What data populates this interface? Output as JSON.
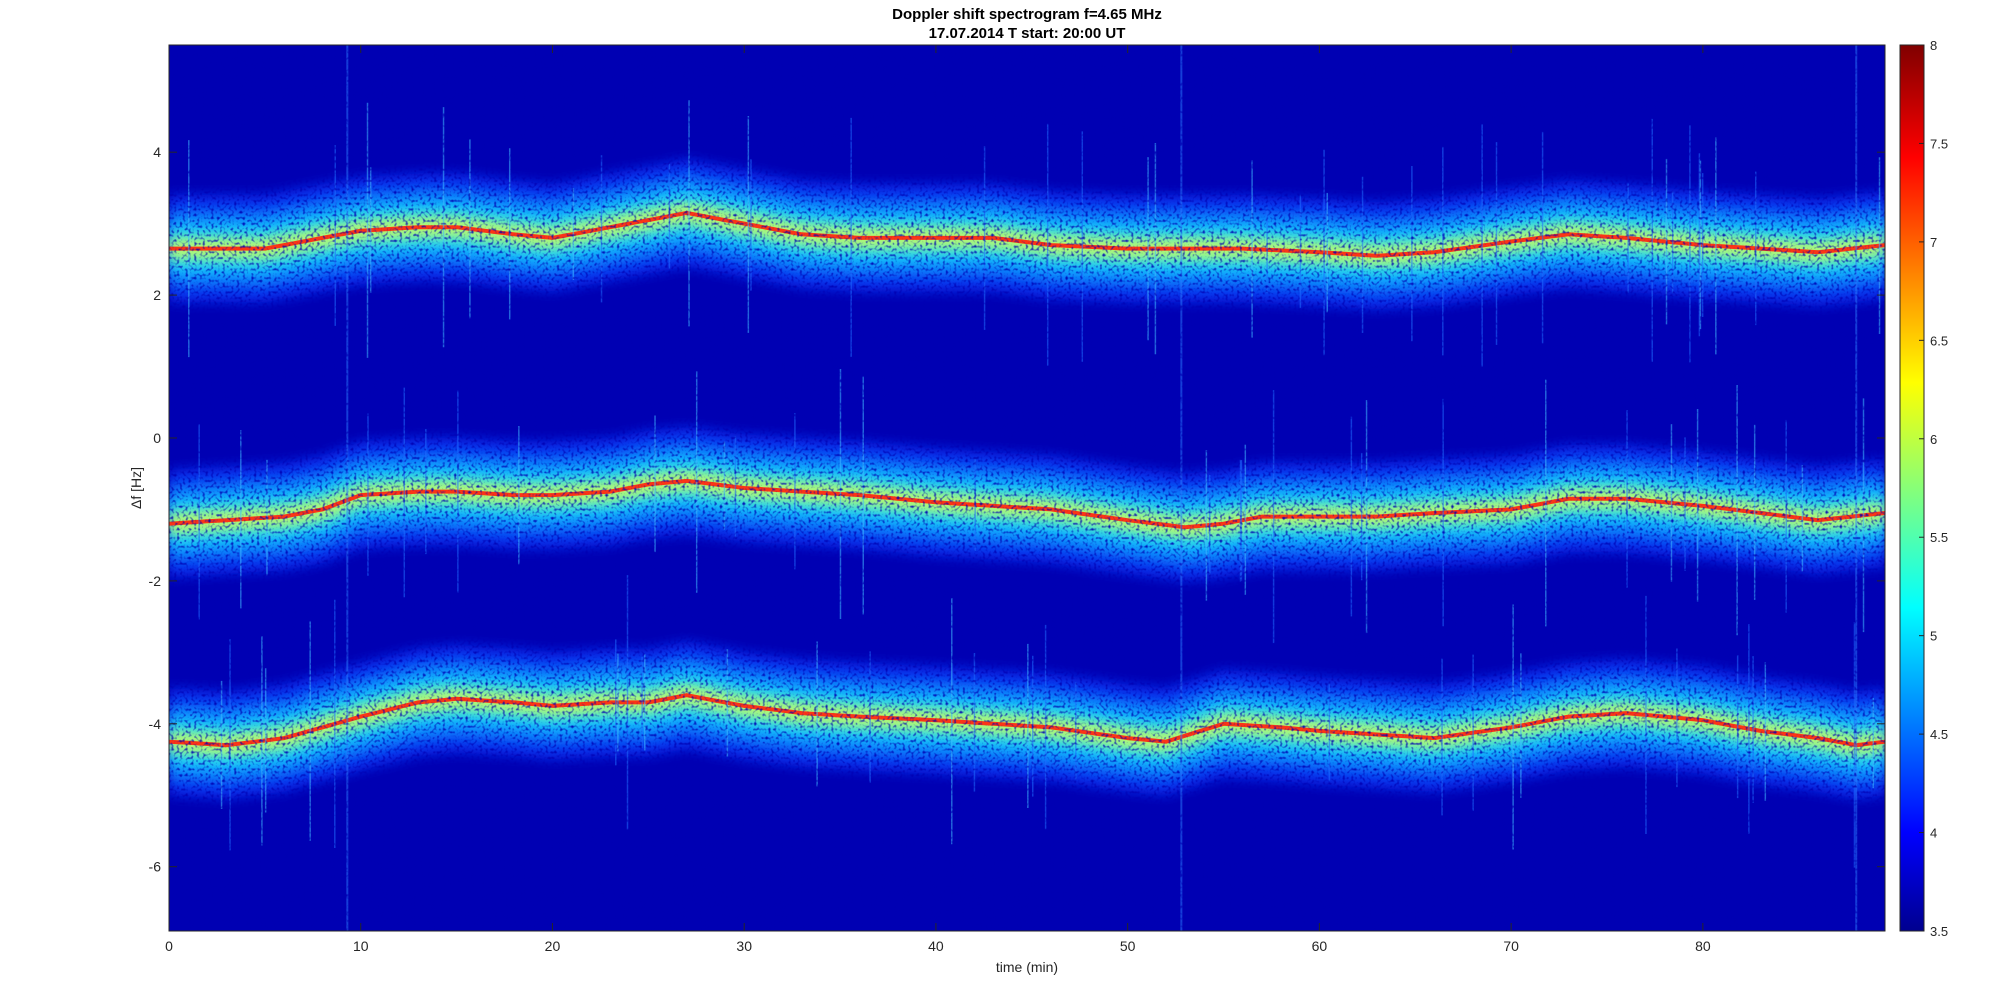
{
  "chart_data": {
    "type": "heatmap",
    "title": "Doppler shift spectrogram f=4.65 MHz",
    "subtitle": "17.07.2014   T start: 20:00 UT",
    "xlabel": "time (min)",
    "ylabel": "Δf [Hz]",
    "xlim": [
      0,
      89.5
    ],
    "ylim": [
      -6.9,
      5.5
    ],
    "xticks": [
      0,
      10,
      20,
      30,
      40,
      50,
      60,
      70,
      80
    ],
    "yticks": [
      4,
      2,
      0,
      -2,
      -4,
      -6
    ],
    "colorbar": {
      "colormap": "jet",
      "clim": [
        3.5,
        8
      ],
      "ticks": [
        8,
        7.5,
        7,
        6.5,
        6,
        5.5,
        5,
        4.5,
        4,
        3.5
      ]
    },
    "series": [
      {
        "x": [
          0,
          3,
          5,
          8,
          10,
          13,
          15,
          18,
          20,
          23,
          25,
          27,
          30,
          33,
          36,
          40,
          43,
          46,
          50,
          53,
          56,
          60,
          63,
          66,
          70,
          73,
          76,
          80,
          83,
          86,
          89.5
        ],
        "y": [
          2.65,
          2.65,
          2.65,
          2.8,
          2.9,
          2.95,
          2.95,
          2.85,
          2.8,
          2.95,
          3.05,
          3.15,
          3.0,
          2.85,
          2.8,
          2.8,
          2.8,
          2.7,
          2.65,
          2.65,
          2.65,
          2.6,
          2.55,
          2.6,
          2.75,
          2.85,
          2.8,
          2.7,
          2.65,
          2.6,
          2.7
        ]
      },
      {
        "x": [
          0,
          3,
          6,
          8,
          10,
          13,
          15,
          18,
          20,
          23,
          25,
          27,
          30,
          33,
          36,
          40,
          43,
          46,
          50,
          53,
          55,
          57,
          60,
          63,
          66,
          70,
          73,
          76,
          80,
          83,
          86,
          89.5
        ],
        "y": [
          -1.2,
          -1.15,
          -1.1,
          -1.0,
          -0.8,
          -0.75,
          -0.75,
          -0.8,
          -0.8,
          -0.75,
          -0.65,
          -0.6,
          -0.7,
          -0.75,
          -0.8,
          -0.9,
          -0.95,
          -1.0,
          -1.15,
          -1.25,
          -1.2,
          -1.1,
          -1.1,
          -1.1,
          -1.05,
          -1.0,
          -0.85,
          -0.85,
          -0.95,
          -1.05,
          -1.15,
          -1.05
        ]
      },
      {
        "x": [
          0,
          3,
          6,
          8,
          10,
          13,
          15,
          18,
          20,
          23,
          25,
          27,
          30,
          33,
          36,
          40,
          43,
          46,
          50,
          52,
          55,
          58,
          60,
          63,
          66,
          70,
          73,
          76,
          80,
          83,
          86,
          88,
          89.5
        ],
        "y": [
          -4.25,
          -4.3,
          -4.2,
          -4.05,
          -3.9,
          -3.7,
          -3.65,
          -3.7,
          -3.75,
          -3.7,
          -3.7,
          -3.6,
          -3.75,
          -3.85,
          -3.9,
          -3.95,
          -4.0,
          -4.05,
          -4.2,
          -4.25,
          -4.0,
          -4.05,
          -4.1,
          -4.15,
          -4.2,
          -4.05,
          -3.9,
          -3.85,
          -3.95,
          -4.1,
          -4.2,
          -4.3,
          -4.25
        ]
      }
    ]
  }
}
